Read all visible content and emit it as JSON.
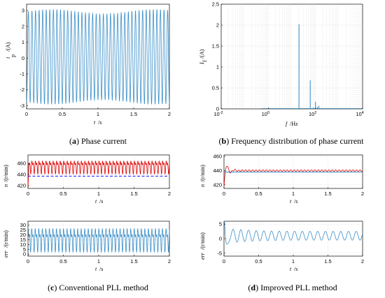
{
  "captions": {
    "a": {
      "tag": "a",
      "text": "Phase current"
    },
    "b": {
      "tag": "b",
      "text": "Frequency distribution of phase current"
    },
    "c": {
      "tag": "c",
      "text": "Conventional PLL method"
    },
    "d": {
      "tag": "d",
      "text": "Improved PLL method"
    }
  },
  "colors": {
    "blue": "#3a8fc8",
    "red": "#e00000",
    "ref": "#3030ff",
    "grid": "#c8c8c8"
  },
  "chart_data": [
    {
      "id": "a",
      "type": "line",
      "xlabel": "t /s",
      "ylabel": "i_p /(A)",
      "xlim": [
        0,
        2
      ],
      "ylim": [
        -3.2,
        3.4
      ],
      "xticks": [
        "0",
        "0.5",
        "1",
        "1.5",
        "2"
      ],
      "yticks": [
        "-3",
        "-2",
        "-1",
        "0",
        "1",
        "2",
        "3"
      ],
      "grid": false,
      "series": [
        {
          "color": "#3a8fc8",
          "x": [
            0,
            0.125,
            0.25,
            0.375,
            0.5,
            0.625,
            0.75,
            0.875,
            1.0,
            1.125,
            1.25,
            1.375,
            1.5,
            1.625,
            1.75,
            1.875,
            2.0
          ],
          "values": [
            -2.8,
            0,
            2.9,
            0,
            -2.7,
            0,
            2.9,
            0,
            -2.8,
            0,
            2.9,
            0,
            -2.7,
            0,
            2.9,
            0,
            -2.6
          ],
          "note_frequency_hz": 20,
          "amplitude": 2.85
        }
      ]
    },
    {
      "id": "b",
      "type": "bar",
      "xscale": "log",
      "xlabel": "f /Hz",
      "ylabel": "I_f /(A)",
      "xlim": [
        0.01,
        10000
      ],
      "ylim": [
        0,
        2.5
      ],
      "xticks": [
        "10-2",
        "100",
        "102",
        "104"
      ],
      "yticks": [
        "0",
        "0.5",
        "1",
        "1.5",
        "2",
        "2.5"
      ],
      "grid": true,
      "x": [
        20,
        40,
        60,
        80,
        100,
        120,
        140
      ],
      "values": [
        2.02,
        0.02,
        0.68,
        0.03,
        0.17,
        0.05,
        0.07
      ]
    },
    {
      "id": "c1",
      "type": "line",
      "xlabel": "t /s",
      "ylabel": "n /(r/min)",
      "xlim": [
        0,
        2
      ],
      "ylim": [
        415,
        475
      ],
      "xticks": [
        "0",
        "0.5",
        "1",
        "1.5",
        "2"
      ],
      "yticks": [
        "420",
        "440",
        "460"
      ],
      "grid": true,
      "series": [
        {
          "color": "#e00000",
          "style": "oscillation",
          "mean": 455,
          "amplitude": 15,
          "range": [
            440,
            470
          ]
        },
        {
          "color": "#3030ff",
          "style": "dashed",
          "values": [
            437,
            437
          ]
        }
      ]
    },
    {
      "id": "c2",
      "type": "line",
      "xlabel": "t /s",
      "ylabel": "err /(r/min)",
      "xlim": [
        0,
        2
      ],
      "ylim": [
        -2,
        34
      ],
      "xticks": [
        "0",
        "0.5",
        "1",
        "1.5",
        "2"
      ],
      "yticks": [
        "0",
        "5",
        "10",
        "15",
        "20",
        "25",
        "30"
      ],
      "grid": true,
      "series": [
        {
          "color": "#3a8fc8",
          "style": "oscillation",
          "mean": 16,
          "amplitude": 14,
          "range": [
            0,
            31
          ]
        }
      ]
    },
    {
      "id": "d1",
      "type": "line",
      "xlabel": "t /s",
      "ylabel": "n /(r/min)",
      "xlim": [
        0,
        2
      ],
      "ylim": [
        415,
        462
      ],
      "xticks": [
        "0",
        "0.5",
        "1",
        "1.5",
        "2"
      ],
      "yticks": [
        "420",
        "440",
        "460"
      ],
      "grid": true,
      "series": [
        {
          "color": "#e00000",
          "style": "settling",
          "final": 440,
          "ripple": 1
        },
        {
          "color": "#3a8fc8",
          "style": "flat",
          "values": [
            438,
            438
          ]
        }
      ]
    },
    {
      "id": "d2",
      "type": "line",
      "xlabel": "t /s",
      "ylabel": "err /(r/min)",
      "xlim": [
        0,
        2
      ],
      "ylim": [
        -6,
        6
      ],
      "xticks": [
        "0",
        "0.5",
        "1",
        "1.5",
        "2"
      ],
      "yticks": [
        "-5",
        "0",
        "5"
      ],
      "grid": true,
      "series": [
        {
          "color": "#3a8fc8",
          "style": "settling",
          "final": 1,
          "ripple": 1.5
        }
      ]
    }
  ]
}
